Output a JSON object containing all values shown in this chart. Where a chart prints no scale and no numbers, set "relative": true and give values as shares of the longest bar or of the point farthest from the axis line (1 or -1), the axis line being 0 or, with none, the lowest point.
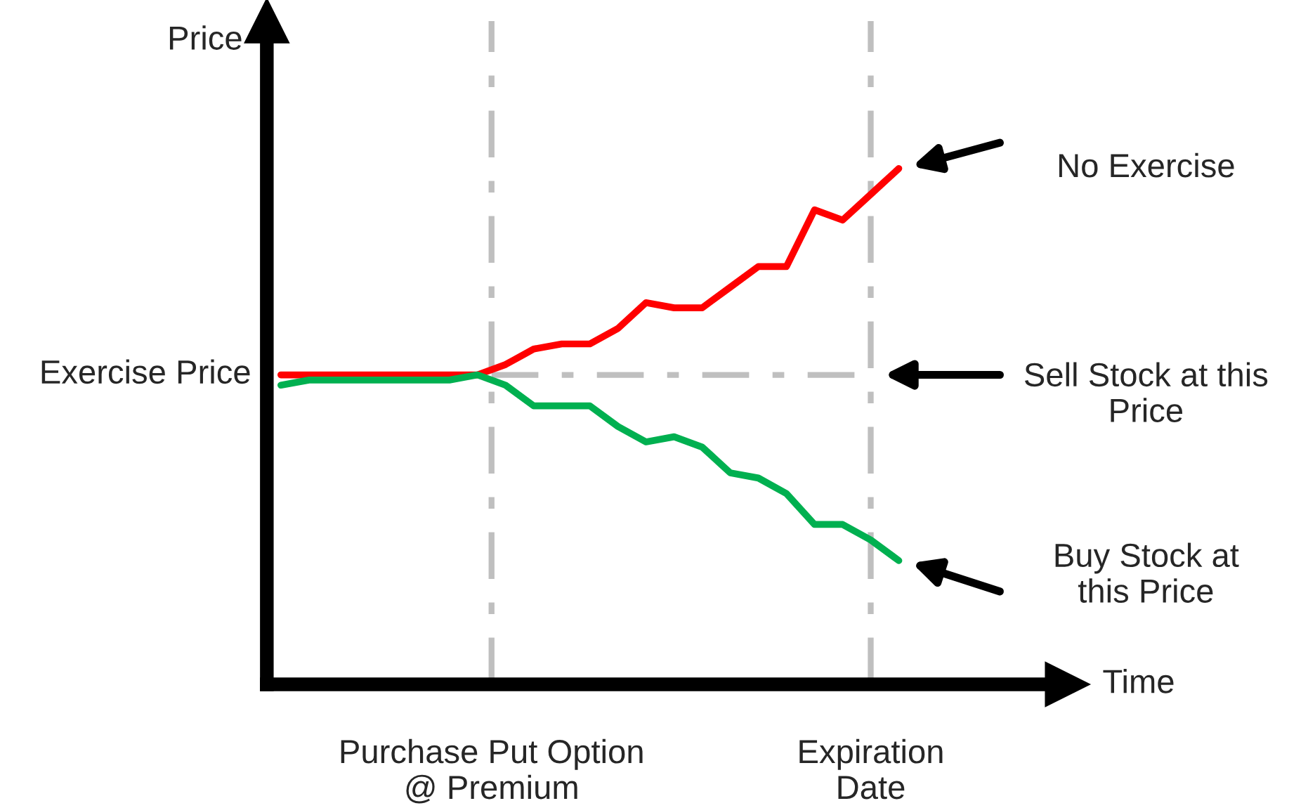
{
  "chart_data": {
    "type": "line",
    "relative": true,
    "ylabel": "Price",
    "categories": [
      null,
      null,
      null,
      null,
      null,
      null,
      null,
      null,
      null,
      null,
      null,
      null,
      null,
      null,
      null,
      null,
      null,
      null,
      null,
      null,
      null,
      null,
      null
    ],
    "series": [
      {
        "color": "#ff0000",
        "values": [
          0.6,
          0.6,
          0.6,
          0.6,
          0.6,
          0.6,
          0.6,
          0.6,
          0.62,
          0.65,
          0.66,
          0.66,
          0.69,
          0.74,
          0.73,
          0.73,
          0.77,
          0.81,
          0.81,
          0.92,
          0.9,
          0.95,
          1.0
        ]
      },
      {
        "color": "#00b050",
        "values": [
          0.58,
          0.59,
          0.59,
          0.59,
          0.59,
          0.59,
          0.59,
          0.6,
          0.58,
          0.54,
          0.54,
          0.54,
          0.5,
          0.47,
          0.48,
          0.46,
          0.41,
          0.4,
          0.37,
          0.31,
          0.31,
          0.28,
          0.24
        ]
      }
    ],
    "ref_lines": [
      {
        "axis": "y",
        "value": 0.6,
        "color": "#bfbfbf",
        "line_style": "dashed"
      }
    ],
    "annotations": [
      "No Exercise",
      "Sell Stock at this\nPrice",
      "Buy Stock at\nthis Price",
      "Exercise Price",
      "Purchase Put Option\n@ Premium",
      "Expiration\nDate",
      "Time"
    ],
    "legend": false,
    "grid": false
  }
}
